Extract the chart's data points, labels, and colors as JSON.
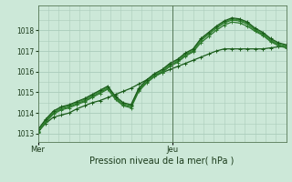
{
  "background_color": "#cce8d8",
  "grid_color": "#aaccbb",
  "line_colors": [
    "#1a5c1a",
    "#2d7a2d",
    "#3a8c3a",
    "#2d7a2d",
    "#1a5c1a"
  ],
  "xlabel": "Pression niveau de la mer( hPa )",
  "x_tick_labels": [
    "Mer",
    "Jeu"
  ],
  "x_tick_pos": [
    0,
    13
  ],
  "vline_x": 13,
  "ylim": [
    1012.6,
    1019.2
  ],
  "yticks": [
    1013,
    1014,
    1015,
    1016,
    1017,
    1018
  ],
  "xlim": [
    0,
    24
  ],
  "series": [
    [
      1013.1,
      1013.5,
      1013.8,
      1013.9,
      1014.0,
      1014.2,
      1014.35,
      1014.5,
      1014.6,
      1014.75,
      1014.9,
      1015.05,
      1015.2,
      1015.4,
      1015.6,
      1015.8,
      1015.95,
      1016.1,
      1016.25,
      1016.4,
      1016.55,
      1016.7,
      1016.85,
      1017.0,
      1017.1,
      1017.1,
      1017.1,
      1017.1,
      1017.1,
      1017.1,
      1017.15,
      1017.2,
      1017.2
    ],
    [
      1013.1,
      1013.6,
      1014.0,
      1014.2,
      1014.3,
      1014.45,
      1014.6,
      1014.8,
      1015.0,
      1015.2,
      1014.7,
      1014.4,
      1014.3,
      1015.1,
      1015.5,
      1015.8,
      1016.0,
      1016.3,
      1016.5,
      1016.8,
      1017.0,
      1017.5,
      1017.8,
      1018.1,
      1018.35,
      1018.5,
      1018.45,
      1018.3,
      1018.0,
      1017.8,
      1017.5,
      1017.3,
      1017.2
    ],
    [
      1013.15,
      1013.65,
      1014.05,
      1014.25,
      1014.35,
      1014.5,
      1014.65,
      1014.85,
      1015.05,
      1015.25,
      1014.75,
      1014.45,
      1014.35,
      1015.15,
      1015.55,
      1015.85,
      1016.05,
      1016.35,
      1016.55,
      1016.85,
      1017.05,
      1017.55,
      1017.85,
      1018.15,
      1018.4,
      1018.55,
      1018.5,
      1018.35,
      1018.05,
      1017.85,
      1017.55,
      1017.35,
      1017.25
    ],
    [
      1013.05,
      1013.55,
      1013.95,
      1014.15,
      1014.25,
      1014.4,
      1014.55,
      1014.75,
      1014.95,
      1015.15,
      1014.65,
      1014.35,
      1014.25,
      1015.05,
      1015.45,
      1015.75,
      1015.95,
      1016.25,
      1016.45,
      1016.75,
      1016.95,
      1017.4,
      1017.7,
      1018.0,
      1018.25,
      1018.4,
      1018.35,
      1018.2,
      1017.95,
      1017.75,
      1017.45,
      1017.25,
      1017.15
    ],
    [
      1013.2,
      1013.7,
      1014.1,
      1014.3,
      1014.4,
      1014.55,
      1014.7,
      1014.9,
      1015.1,
      1015.3,
      1014.8,
      1014.5,
      1014.4,
      1015.2,
      1015.6,
      1015.9,
      1016.1,
      1016.4,
      1016.6,
      1016.9,
      1017.1,
      1017.6,
      1017.9,
      1018.2,
      1018.45,
      1018.6,
      1018.55,
      1018.4,
      1018.1,
      1017.9,
      1017.6,
      1017.4,
      1017.3
    ]
  ],
  "marker_size": 2.5,
  "linewidth": 0.9,
  "ytick_fontsize": 5.5,
  "xtick_fontsize": 6.0,
  "xlabel_fontsize": 7.0
}
